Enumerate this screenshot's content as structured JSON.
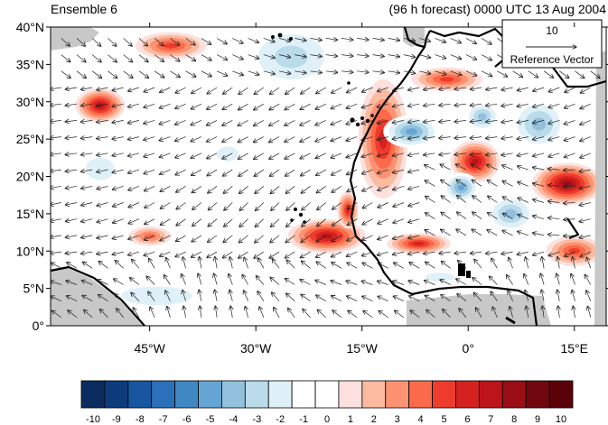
{
  "title_left": "Ensemble 6",
  "title_right": "(96 h forecast) 0000 UTC 13 Aug 2004",
  "reference_vector": {
    "value": "10",
    "label": "Reference Vector"
  },
  "map": {
    "lon_range": [
      -59,
      19.5
    ],
    "lat_range": [
      0,
      40
    ],
    "lat_ticks": [
      {
        "value": 40,
        "label": "40°N"
      },
      {
        "value": 35,
        "label": "35°N"
      },
      {
        "value": 30,
        "label": "30°N"
      },
      {
        "value": 25,
        "label": "25°N"
      },
      {
        "value": 20,
        "label": "20°N"
      },
      {
        "value": 15,
        "label": "15°N"
      },
      {
        "value": 10,
        "label": "10°N"
      },
      {
        "value": 5,
        "label": "5°N"
      },
      {
        "value": 0,
        "label": "0°"
      }
    ],
    "lon_ticks": [
      {
        "value": -45,
        "label": "45°W"
      },
      {
        "value": -30,
        "label": "30°W"
      },
      {
        "value": -15,
        "label": "15°W"
      },
      {
        "value": 0,
        "label": "0°"
      },
      {
        "value": 15,
        "label": "15°E"
      }
    ],
    "anomaly_blobs": [
      {
        "lon": -42,
        "lat": 37.5,
        "rlon": 5,
        "rlat": 1.8,
        "v": 5
      },
      {
        "lon": -52,
        "lat": 29.5,
        "rlon": 3.5,
        "rlat": 2.3,
        "v": 7
      },
      {
        "lon": -45,
        "lat": 12,
        "rlon": 3,
        "rlat": 1.3,
        "v": 4
      },
      {
        "lon": -25,
        "lat": 36,
        "rlon": 7,
        "rlat": 4.5,
        "v": -3
      },
      {
        "lon": -20,
        "lat": 12,
        "rlon": 5.5,
        "rlat": 2.3,
        "v": 7
      },
      {
        "lon": -17,
        "lat": 15.5,
        "rlon": 1.5,
        "rlat": 2.5,
        "v": 6
      },
      {
        "lon": -12,
        "lat": 25,
        "rlon": 3.5,
        "rlat": 8,
        "v": 6
      },
      {
        "lon": -7,
        "lat": 11,
        "rlon": 4.5,
        "rlat": 1.4,
        "v": 6
      },
      {
        "lon": 1,
        "lat": 22,
        "rlon": 3.5,
        "rlat": 2.8,
        "v": 7
      },
      {
        "lon": 14,
        "lat": 19,
        "rlon": 5,
        "rlat": 2.8,
        "v": 8
      },
      {
        "lon": -3,
        "lat": 33,
        "rlon": 5,
        "rlat": 1.6,
        "v": 5
      },
      {
        "lon": -8,
        "lat": 26,
        "rlon": 4,
        "rlat": 2.2,
        "v": -5
      },
      {
        "lon": 10,
        "lat": 27,
        "rlon": 4,
        "rlat": 3.5,
        "v": -4
      },
      {
        "lon": 2,
        "lat": 28,
        "rlon": 2.5,
        "rlat": 2,
        "v": -4
      },
      {
        "lon": -1,
        "lat": 18.5,
        "rlon": 2.5,
        "rlat": 2,
        "v": -5
      },
      {
        "lon": 6,
        "lat": 15,
        "rlon": 3.5,
        "rlat": 2.5,
        "v": -4
      },
      {
        "lon": 15,
        "lat": 10,
        "rlon": 4,
        "rlat": 2,
        "v": 5
      },
      {
        "lon": -44,
        "lat": 4,
        "rlon": 10,
        "rlat": 2.5,
        "v": -2
      },
      {
        "lon": -52,
        "lat": 21,
        "rlon": 4,
        "rlat": 3,
        "v": -2
      },
      {
        "lon": -34,
        "lat": 23,
        "rlon": 3,
        "rlat": 2,
        "v": -2
      },
      {
        "lon": -4,
        "lat": 6.5,
        "rlon": 4,
        "rlat": 1.2,
        "v": -2
      }
    ]
  },
  "colorbar": {
    "colors": [
      "#0a2c5e",
      "#0c3c7c",
      "#1756a0",
      "#2b70b8",
      "#3f88c4",
      "#65a5d4",
      "#92c1dd",
      "#b9dbea",
      "#dff0f8",
      "#ffffff",
      "#ffffff",
      "#fde0dd",
      "#fcbba1",
      "#fc9272",
      "#fb6a4a",
      "#ef3b2c",
      "#d52221",
      "#bb1519",
      "#9b0d14",
      "#730710",
      "#5a0208"
    ],
    "labels": [
      "-10",
      "-9",
      "-8",
      "-7",
      "-6",
      "-5",
      "-4",
      "-3",
      "-2",
      "-1",
      "0",
      "1",
      "2",
      "3",
      "4",
      "5",
      "6",
      "7",
      "8",
      "9",
      "10"
    ]
  }
}
